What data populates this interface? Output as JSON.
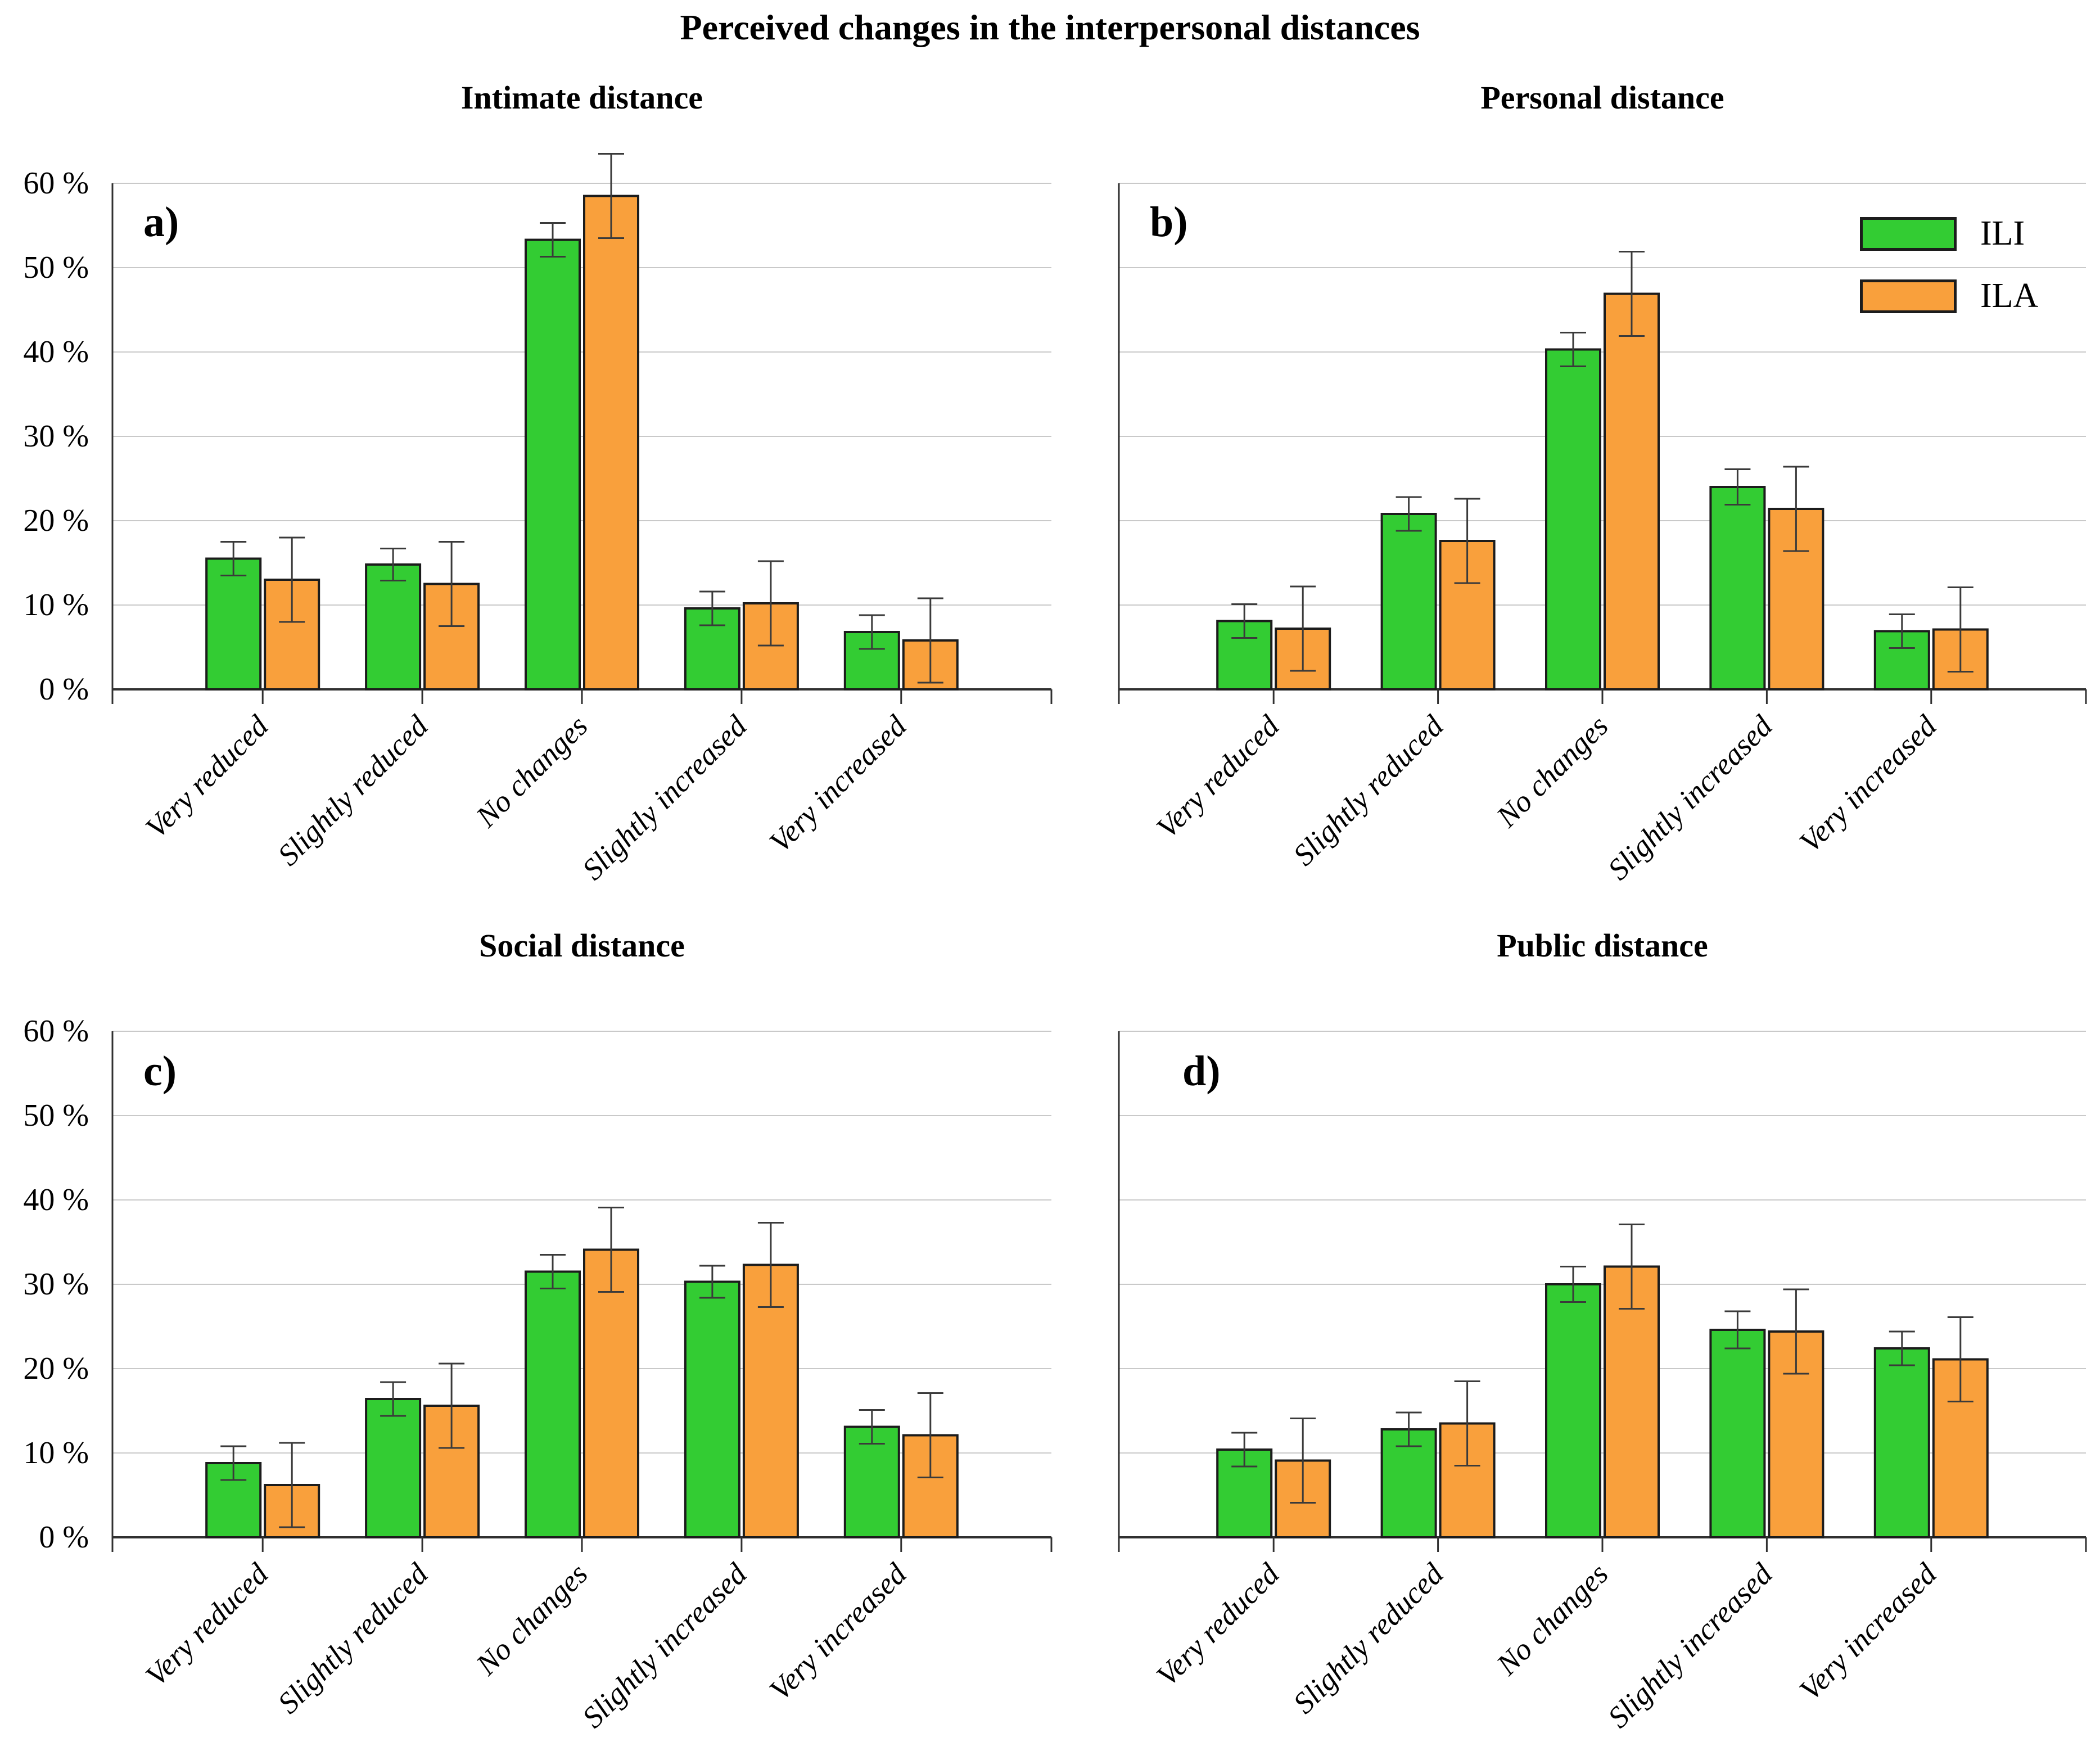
{
  "figure_title": "Perceived changes in the interpersonal distances",
  "legend": {
    "position": "top-right-of-panel-b",
    "series": [
      {
        "name": "ILI",
        "color": "#33cc33"
      },
      {
        "name": "ILA",
        "color": "#f9a03c"
      }
    ]
  },
  "y_axis": {
    "ticks": [
      "0 %",
      "10 %",
      "20 %",
      "30 %",
      "40 %",
      "50 %",
      "60 %"
    ],
    "min": 0,
    "max": 60,
    "grid": "on",
    "tick_labels_visible_on": [
      "panel a",
      "panel c"
    ]
  },
  "styles": {
    "bar_stroke": "#1c1c1c",
    "gridline_color": "#c9c9c9",
    "axis_color": "#303030",
    "error_bar_color": "#3a3a3a"
  },
  "chart_data": [
    {
      "type": "bar",
      "panel_label": "a)",
      "title": "Intimate distance",
      "categories": [
        "Very reduced",
        "Slightly reduced",
        "No changes",
        "Slightly increased",
        "Very increased"
      ],
      "series": [
        {
          "name": "ILI",
          "values": [
            15.5,
            14.8,
            53.3,
            9.6,
            6.8
          ],
          "errors": [
            2.0,
            1.9,
            2.0,
            2.0,
            2.0
          ]
        },
        {
          "name": "ILA",
          "values": [
            13.0,
            12.5,
            58.5,
            10.2,
            5.8
          ],
          "errors": [
            5.0,
            5.0,
            5.0,
            5.0,
            5.0
          ]
        }
      ],
      "ylim": [
        0,
        60
      ]
    },
    {
      "type": "bar",
      "panel_label": "b)",
      "title": "Personal distance",
      "categories": [
        "Very reduced",
        "Slightly reduced",
        "No changes",
        "Slightly increased",
        "Very increased"
      ],
      "series": [
        {
          "name": "ILI",
          "values": [
            8.1,
            20.8,
            40.3,
            24.0,
            6.9
          ],
          "errors": [
            2.0,
            2.0,
            2.0,
            2.1,
            2.0
          ]
        },
        {
          "name": "ILA",
          "values": [
            7.2,
            17.6,
            46.9,
            21.4,
            7.1
          ],
          "errors": [
            5.0,
            5.0,
            5.0,
            5.0,
            5.0
          ]
        }
      ],
      "ylim": [
        0,
        60
      ]
    },
    {
      "type": "bar",
      "panel_label": "c)",
      "title": "Social distance",
      "categories": [
        "Very reduced",
        "Slightly reduced",
        "No changes",
        "Slightly increased",
        "Very increased"
      ],
      "series": [
        {
          "name": "ILI",
          "values": [
            8.8,
            16.4,
            31.5,
            30.3,
            13.1
          ],
          "errors": [
            2.0,
            2.0,
            2.0,
            1.9,
            2.0
          ]
        },
        {
          "name": "ILA",
          "values": [
            6.2,
            15.6,
            34.1,
            32.3,
            12.1
          ],
          "errors": [
            5.0,
            5.0,
            5.0,
            5.0,
            5.0
          ]
        }
      ],
      "ylim": [
        0,
        60
      ]
    },
    {
      "type": "bar",
      "panel_label": "d)",
      "title": "Public distance",
      "categories": [
        "Very reduced",
        "Slightly reduced",
        "No changes",
        "Slightly increased",
        "Very increased"
      ],
      "series": [
        {
          "name": "ILI",
          "values": [
            10.4,
            12.8,
            30.0,
            24.6,
            22.4
          ],
          "errors": [
            2.0,
            2.0,
            2.1,
            2.2,
            2.0
          ]
        },
        {
          "name": "ILA",
          "values": [
            9.1,
            13.5,
            32.1,
            24.4,
            21.1
          ],
          "errors": [
            5.0,
            5.0,
            5.0,
            5.0,
            5.0
          ]
        }
      ],
      "ylim": [
        0,
        60
      ]
    }
  ]
}
